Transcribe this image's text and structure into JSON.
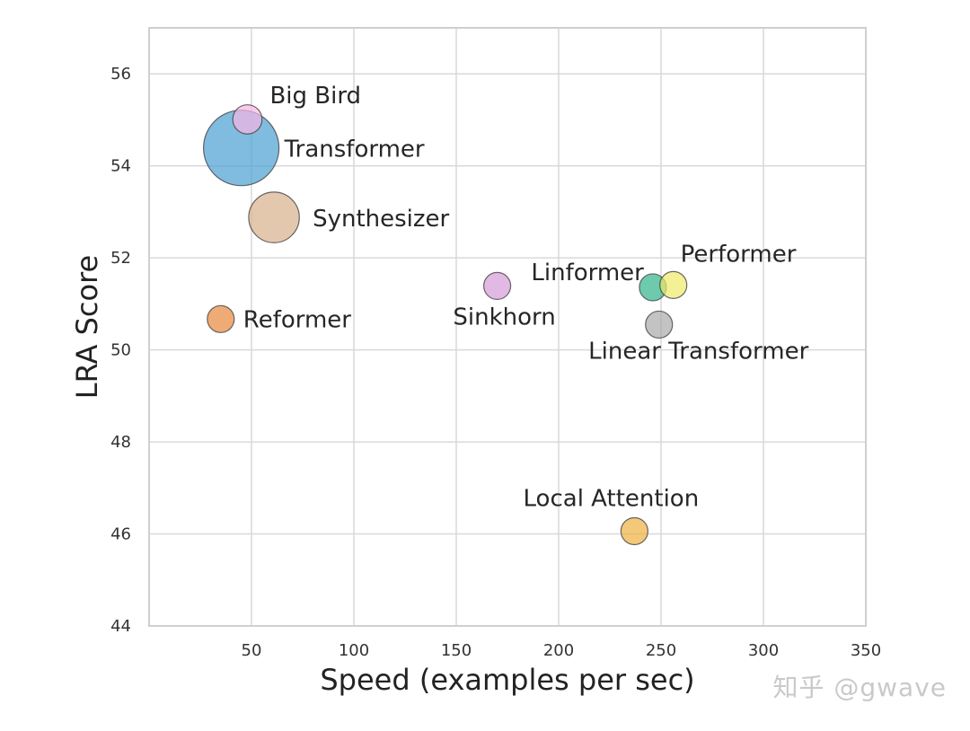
{
  "chart_data": {
    "type": "scatter",
    "xlabel": "Speed (examples per sec)",
    "ylabel": "LRA Score",
    "xlim": [
      0,
      350
    ],
    "ylim": [
      44,
      57
    ],
    "xticks": [
      50,
      100,
      150,
      200,
      250,
      300,
      350
    ],
    "yticks": [
      44,
      46,
      48,
      50,
      52,
      54,
      56
    ],
    "grid": true,
    "points": [
      {
        "name": "Transformer",
        "x": 45,
        "y": 54.39,
        "size": 1.0,
        "color": "#4a9fd1"
      },
      {
        "name": "Big Bird",
        "x": 48,
        "y": 55.01,
        "size": 0.15,
        "color": "#f7b6e6"
      },
      {
        "name": "Synthesizer",
        "x": 61,
        "y": 52.88,
        "size": 0.45,
        "color": "#d9b08c"
      },
      {
        "name": "Reformer",
        "x": 35,
        "y": 50.67,
        "size": 0.11,
        "color": "#e8883c"
      },
      {
        "name": "Sinkhorn",
        "x": 170,
        "y": 51.39,
        "size": 0.07,
        "color": "#d69ad8"
      },
      {
        "name": "Linformer",
        "x": 246,
        "y": 51.36,
        "size": 0.05,
        "color": "#2fb389"
      },
      {
        "name": "Performer",
        "x": 256,
        "y": 51.41,
        "size": 0.05,
        "color": "#f0e96a"
      },
      {
        "name": "Linear Transformer",
        "x": 249,
        "y": 50.55,
        "size": 0.05,
        "color": "#a9a9a9"
      },
      {
        "name": "Local Attention",
        "x": 237,
        "y": 46.06,
        "size": 0.07,
        "color": "#f0b040"
      }
    ]
  },
  "watermark": "知乎 @gwave"
}
